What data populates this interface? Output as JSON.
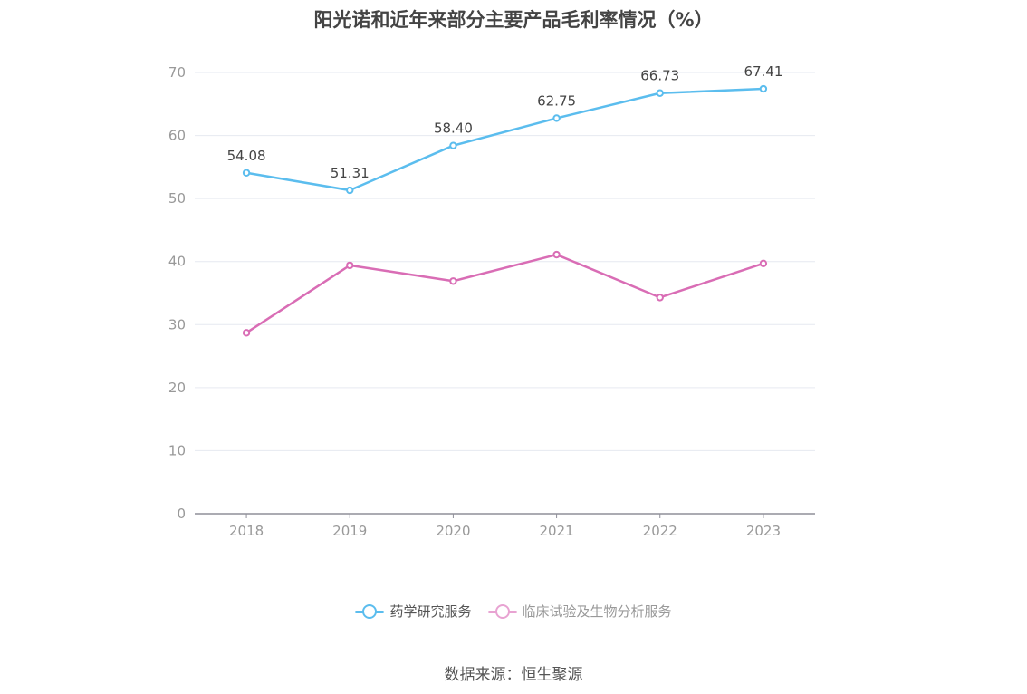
{
  "title": "阳光诺和近年来部分主要产品毛利率情况（%）",
  "source": "数据来源：恒生聚源",
  "legend": {
    "items": [
      {
        "label": "药学研究服务",
        "color": "#5bbdee",
        "text_color": "#555555"
      },
      {
        "label": "临床试验及生物分析服务",
        "color": "#e8a3d2",
        "text_color": "#999999"
      }
    ]
  },
  "chart_data": {
    "type": "line",
    "categories": [
      "2018",
      "2019",
      "2020",
      "2021",
      "2022",
      "2023"
    ],
    "ylim": [
      0,
      70
    ],
    "yticks": [
      0,
      10,
      20,
      30,
      40,
      50,
      60,
      70
    ],
    "grid": true,
    "legend_position": "bottom",
    "series": [
      {
        "name": "药学研究服务",
        "color": "#5bbdee",
        "show_labels": true,
        "values": [
          54.08,
          51.31,
          58.4,
          62.75,
          66.73,
          67.41
        ],
        "labels": [
          "54.08",
          "51.31",
          "58.40",
          "62.75",
          "66.73",
          "67.41"
        ]
      },
      {
        "name": "临床试验及生物分析服务",
        "color": "#d96db5",
        "show_labels": false,
        "values": [
          28.7,
          39.4,
          36.9,
          41.1,
          34.3,
          39.7
        ]
      }
    ]
  }
}
